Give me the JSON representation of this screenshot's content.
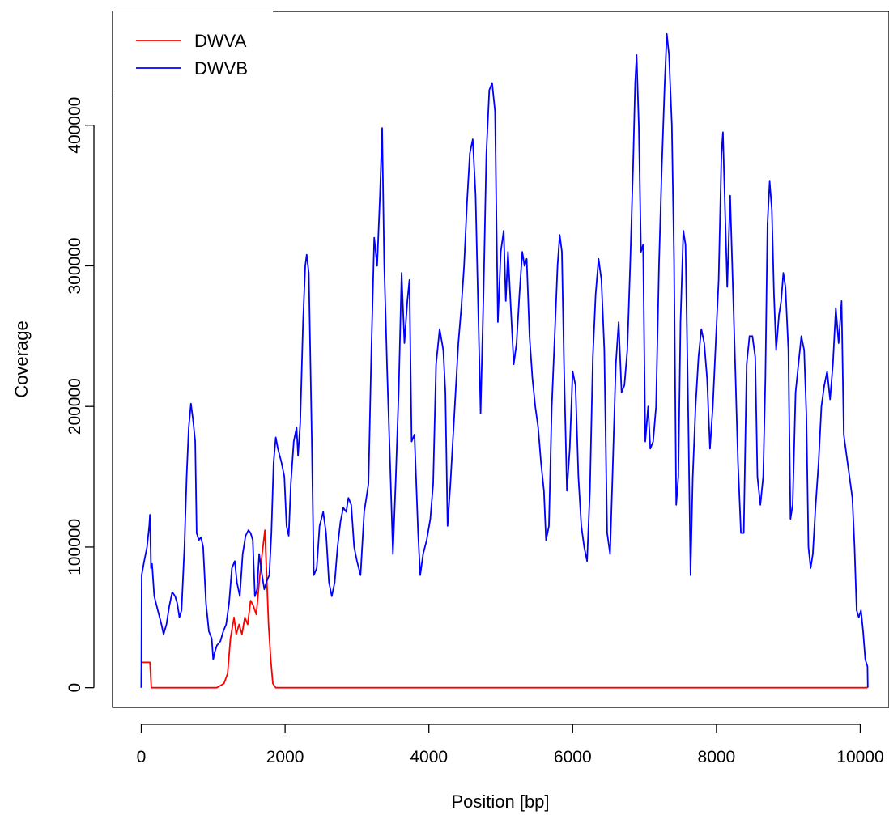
{
  "chart_data": {
    "type": "line",
    "title": "",
    "xlabel": "Position [bp]",
    "ylabel": "Coverage",
    "xlim": [
      -400,
      10400
    ],
    "ylim": [
      -14000,
      481000
    ],
    "x_ticks": [
      0,
      2000,
      4000,
      6000,
      8000,
      10000
    ],
    "x_tick_labels": [
      "0",
      "2000",
      "4000",
      "6000",
      "8000",
      "10000"
    ],
    "y_ticks": [
      0,
      100000,
      200000,
      300000,
      400000
    ],
    "y_tick_labels": [
      "0",
      "100000",
      "200000",
      "300000",
      "400000"
    ],
    "grid": false,
    "legend_position": "top-left",
    "series": [
      {
        "name": "DWVA",
        "color": "#ff0000",
        "points": [
          [
            0,
            0
          ],
          [
            5,
            18000
          ],
          [
            120,
            18000
          ],
          [
            140,
            0
          ],
          [
            1050,
            0
          ],
          [
            1150,
            3000
          ],
          [
            1200,
            10000
          ],
          [
            1240,
            35000
          ],
          [
            1290,
            50000
          ],
          [
            1320,
            38000
          ],
          [
            1360,
            45000
          ],
          [
            1400,
            38000
          ],
          [
            1440,
            50000
          ],
          [
            1480,
            45000
          ],
          [
            1520,
            62000
          ],
          [
            1560,
            58000
          ],
          [
            1600,
            52000
          ],
          [
            1640,
            75000
          ],
          [
            1680,
            95000
          ],
          [
            1720,
            112000
          ],
          [
            1740,
            85000
          ],
          [
            1770,
            45000
          ],
          [
            1800,
            20000
          ],
          [
            1830,
            3000
          ],
          [
            1870,
            0
          ],
          [
            10100,
            0
          ]
        ]
      },
      {
        "name": "DWVB",
        "color": "#0000ff",
        "points": [
          [
            0,
            0
          ],
          [
            5,
            80000
          ],
          [
            40,
            90000
          ],
          [
            80,
            100000
          ],
          [
            110,
            115000
          ],
          [
            120,
            123000
          ],
          [
            135,
            85000
          ],
          [
            150,
            88000
          ],
          [
            180,
            65000
          ],
          [
            230,
            55000
          ],
          [
            280,
            45000
          ],
          [
            310,
            38000
          ],
          [
            350,
            45000
          ],
          [
            390,
            58000
          ],
          [
            430,
            68000
          ],
          [
            470,
            65000
          ],
          [
            500,
            60000
          ],
          [
            530,
            50000
          ],
          [
            560,
            55000
          ],
          [
            600,
            100000
          ],
          [
            630,
            150000
          ],
          [
            660,
            185000
          ],
          [
            690,
            202000
          ],
          [
            720,
            190000
          ],
          [
            750,
            175000
          ],
          [
            770,
            110000
          ],
          [
            800,
            105000
          ],
          [
            830,
            107000
          ],
          [
            860,
            100000
          ],
          [
            900,
            60000
          ],
          [
            940,
            40000
          ],
          [
            980,
            35000
          ],
          [
            1000,
            20000
          ],
          [
            1020,
            25000
          ],
          [
            1050,
            30000
          ],
          [
            1100,
            33000
          ],
          [
            1140,
            40000
          ],
          [
            1180,
            45000
          ],
          [
            1220,
            60000
          ],
          [
            1260,
            85000
          ],
          [
            1300,
            90000
          ],
          [
            1330,
            75000
          ],
          [
            1370,
            65000
          ],
          [
            1410,
            95000
          ],
          [
            1450,
            108000
          ],
          [
            1490,
            112000
          ],
          [
            1520,
            110000
          ],
          [
            1550,
            105000
          ],
          [
            1580,
            65000
          ],
          [
            1610,
            70000
          ],
          [
            1640,
            95000
          ],
          [
            1680,
            80000
          ],
          [
            1710,
            70000
          ],
          [
            1740,
            75000
          ],
          [
            1780,
            80000
          ],
          [
            1810,
            110000
          ],
          [
            1840,
            160000
          ],
          [
            1870,
            178000
          ],
          [
            1900,
            170000
          ],
          [
            1950,
            160000
          ],
          [
            1990,
            150000
          ],
          [
            2020,
            115000
          ],
          [
            2050,
            108000
          ],
          [
            2080,
            145000
          ],
          [
            2120,
            175000
          ],
          [
            2160,
            185000
          ],
          [
            2180,
            165000
          ],
          [
            2210,
            188000
          ],
          [
            2250,
            260000
          ],
          [
            2280,
            300000
          ],
          [
            2300,
            308000
          ],
          [
            2330,
            295000
          ],
          [
            2370,
            180000
          ],
          [
            2400,
            80000
          ],
          [
            2440,
            85000
          ],
          [
            2480,
            115000
          ],
          [
            2530,
            125000
          ],
          [
            2570,
            110000
          ],
          [
            2610,
            75000
          ],
          [
            2650,
            65000
          ],
          [
            2690,
            75000
          ],
          [
            2730,
            100000
          ],
          [
            2770,
            118000
          ],
          [
            2810,
            128000
          ],
          [
            2850,
            125000
          ],
          [
            2880,
            135000
          ],
          [
            2920,
            130000
          ],
          [
            2960,
            100000
          ],
          [
            3000,
            90000
          ],
          [
            3050,
            80000
          ],
          [
            3100,
            125000
          ],
          [
            3160,
            145000
          ],
          [
            3200,
            240000
          ],
          [
            3240,
            320000
          ],
          [
            3280,
            300000
          ],
          [
            3320,
            350000
          ],
          [
            3350,
            398000
          ],
          [
            3380,
            300000
          ],
          [
            3420,
            225000
          ],
          [
            3460,
            160000
          ],
          [
            3500,
            95000
          ],
          [
            3540,
            150000
          ],
          [
            3580,
            210000
          ],
          [
            3620,
            295000
          ],
          [
            3660,
            245000
          ],
          [
            3700,
            275000
          ],
          [
            3730,
            290000
          ],
          [
            3760,
            175000
          ],
          [
            3800,
            180000
          ],
          [
            3850,
            110000
          ],
          [
            3880,
            80000
          ],
          [
            3920,
            95000
          ],
          [
            3970,
            105000
          ],
          [
            4020,
            120000
          ],
          [
            4060,
            145000
          ],
          [
            4100,
            230000
          ],
          [
            4150,
            255000
          ],
          [
            4200,
            240000
          ],
          [
            4230,
            210000
          ],
          [
            4260,
            115000
          ],
          [
            4300,
            145000
          ],
          [
            4360,
            200000
          ],
          [
            4410,
            245000
          ],
          [
            4450,
            270000
          ],
          [
            4490,
            300000
          ],
          [
            4530,
            345000
          ],
          [
            4570,
            380000
          ],
          [
            4610,
            390000
          ],
          [
            4650,
            350000
          ],
          [
            4690,
            260000
          ],
          [
            4720,
            195000
          ],
          [
            4760,
            280000
          ],
          [
            4800,
            380000
          ],
          [
            4840,
            425000
          ],
          [
            4880,
            430000
          ],
          [
            4920,
            410000
          ],
          [
            4960,
            260000
          ],
          [
            5000,
            310000
          ],
          [
            5040,
            325000
          ],
          [
            5070,
            275000
          ],
          [
            5100,
            310000
          ],
          [
            5140,
            270000
          ],
          [
            5180,
            230000
          ],
          [
            5220,
            245000
          ],
          [
            5260,
            280000
          ],
          [
            5300,
            310000
          ],
          [
            5330,
            300000
          ],
          [
            5360,
            305000
          ],
          [
            5400,
            250000
          ],
          [
            5440,
            220000
          ],
          [
            5480,
            200000
          ],
          [
            5520,
            185000
          ],
          [
            5560,
            160000
          ],
          [
            5600,
            140000
          ],
          [
            5630,
            105000
          ],
          [
            5670,
            115000
          ],
          [
            5710,
            200000
          ],
          [
            5750,
            250000
          ],
          [
            5790,
            300000
          ],
          [
            5820,
            322000
          ],
          [
            5850,
            310000
          ],
          [
            5880,
            230000
          ],
          [
            5920,
            140000
          ],
          [
            5960,
            170000
          ],
          [
            6000,
            225000
          ],
          [
            6040,
            215000
          ],
          [
            6080,
            150000
          ],
          [
            6120,
            115000
          ],
          [
            6160,
            100000
          ],
          [
            6200,
            90000
          ],
          [
            6240,
            140000
          ],
          [
            6280,
            235000
          ],
          [
            6320,
            280000
          ],
          [
            6360,
            305000
          ],
          [
            6400,
            290000
          ],
          [
            6440,
            240000
          ],
          [
            6480,
            110000
          ],
          [
            6520,
            95000
          ],
          [
            6560,
            160000
          ],
          [
            6600,
            230000
          ],
          [
            6640,
            260000
          ],
          [
            6680,
            210000
          ],
          [
            6720,
            215000
          ],
          [
            6760,
            240000
          ],
          [
            6800,
            300000
          ],
          [
            6840,
            370000
          ],
          [
            6870,
            430000
          ],
          [
            6890,
            450000
          ],
          [
            6920,
            400000
          ],
          [
            6950,
            310000
          ],
          [
            6980,
            315000
          ],
          [
            7010,
            175000
          ],
          [
            7050,
            200000
          ],
          [
            7080,
            170000
          ],
          [
            7120,
            175000
          ],
          [
            7160,
            200000
          ],
          [
            7200,
            300000
          ],
          [
            7240,
            370000
          ],
          [
            7280,
            430000
          ],
          [
            7310,
            465000
          ],
          [
            7340,
            450000
          ],
          [
            7380,
            400000
          ],
          [
            7410,
            305000
          ],
          [
            7440,
            130000
          ],
          [
            7470,
            150000
          ],
          [
            7500,
            260000
          ],
          [
            7540,
            325000
          ],
          [
            7570,
            315000
          ],
          [
            7600,
            220000
          ],
          [
            7640,
            80000
          ],
          [
            7670,
            150000
          ],
          [
            7710,
            200000
          ],
          [
            7750,
            235000
          ],
          [
            7790,
            255000
          ],
          [
            7830,
            245000
          ],
          [
            7870,
            220000
          ],
          [
            7910,
            170000
          ],
          [
            7950,
            200000
          ],
          [
            7990,
            245000
          ],
          [
            8030,
            290000
          ],
          [
            8070,
            380000
          ],
          [
            8090,
            395000
          ],
          [
            8120,
            340000
          ],
          [
            8150,
            285000
          ],
          [
            8190,
            350000
          ],
          [
            8220,
            300000
          ],
          [
            8260,
            230000
          ],
          [
            8300,
            160000
          ],
          [
            8340,
            110000
          ],
          [
            8380,
            110000
          ],
          [
            8420,
            230000
          ],
          [
            8460,
            250000
          ],
          [
            8500,
            250000
          ],
          [
            8540,
            235000
          ],
          [
            8570,
            150000
          ],
          [
            8610,
            130000
          ],
          [
            8650,
            150000
          ],
          [
            8680,
            220000
          ],
          [
            8710,
            330000
          ],
          [
            8740,
            360000
          ],
          [
            8770,
            340000
          ],
          [
            8800,
            280000
          ],
          [
            8830,
            240000
          ],
          [
            8870,
            265000
          ],
          [
            8900,
            275000
          ],
          [
            8930,
            295000
          ],
          [
            8960,
            285000
          ],
          [
            9000,
            240000
          ],
          [
            9030,
            120000
          ],
          [
            9060,
            130000
          ],
          [
            9100,
            210000
          ],
          [
            9140,
            230000
          ],
          [
            9180,
            250000
          ],
          [
            9220,
            240000
          ],
          [
            9250,
            195000
          ],
          [
            9280,
            100000
          ],
          [
            9310,
            85000
          ],
          [
            9340,
            95000
          ],
          [
            9380,
            130000
          ],
          [
            9420,
            160000
          ],
          [
            9460,
            200000
          ],
          [
            9500,
            215000
          ],
          [
            9540,
            225000
          ],
          [
            9580,
            205000
          ],
          [
            9620,
            230000
          ],
          [
            9660,
            270000
          ],
          [
            9700,
            245000
          ],
          [
            9740,
            275000
          ],
          [
            9770,
            180000
          ],
          [
            9810,
            165000
          ],
          [
            9850,
            150000
          ],
          [
            9890,
            135000
          ],
          [
            9920,
            100000
          ],
          [
            9950,
            55000
          ],
          [
            9980,
            50000
          ],
          [
            10010,
            55000
          ],
          [
            10040,
            40000
          ],
          [
            10070,
            20000
          ],
          [
            10100,
            15000
          ],
          [
            10105,
            0
          ]
        ]
      }
    ]
  }
}
